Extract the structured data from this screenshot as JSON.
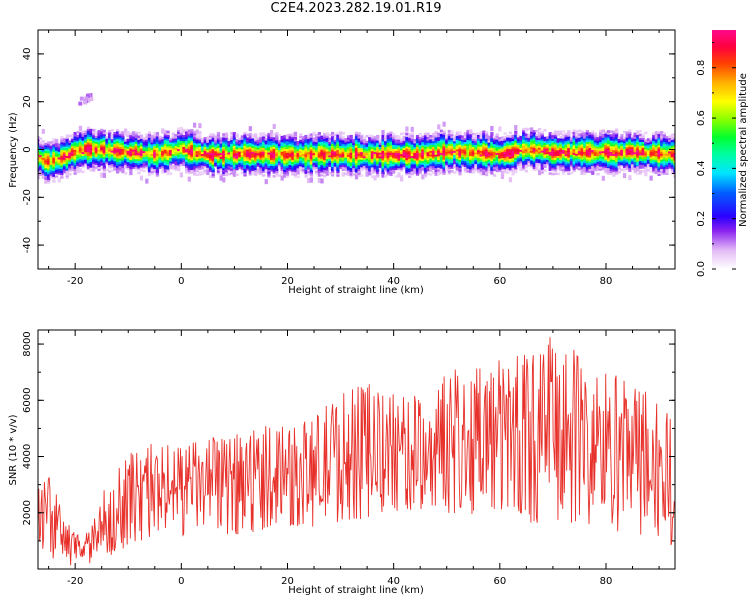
{
  "title": "C2E4.2023.282.19.01.R19",
  "chart_data": [
    {
      "type": "heatmap",
      "xlabel": "Height of straight line (km)",
      "ylabel": "Frequency (Hz)",
      "xlim": [
        -27,
        93
      ],
      "ylim": [
        -50,
        50
      ],
      "x_ticks": [
        -20,
        0,
        20,
        40,
        60,
        80
      ],
      "y_ticks": [
        -40,
        -20,
        0,
        20,
        40
      ],
      "description_series": {
        "name": "",
        "x_step_km": 0.5,
        "ridge_frequency_hz": [
          [
            -27,
            -3
          ],
          [
            -25,
            -5
          ],
          [
            -23,
            -4
          ],
          [
            -21,
            -2
          ],
          [
            -19,
            0
          ],
          [
            -15,
            0
          ],
          [
            -10,
            -1
          ],
          [
            -5,
            -2
          ],
          [
            0,
            0
          ],
          [
            5,
            -2
          ],
          [
            10,
            -2
          ],
          [
            20,
            -2
          ],
          [
            30,
            -2
          ],
          [
            40,
            -2
          ],
          [
            45,
            -2
          ],
          [
            50,
            -1
          ],
          [
            55,
            -1
          ],
          [
            60,
            -2
          ],
          [
            65,
            0
          ],
          [
            70,
            -1
          ],
          [
            80,
            -1
          ],
          [
            85,
            -1
          ],
          [
            93,
            -2
          ]
        ],
        "outlier_blob": {
          "x": -18,
          "y": 21
        }
      },
      "colorbar": {
        "label": "Normalized spectral amplitude",
        "range": [
          0,
          0.95
        ],
        "ticks": [
          0.0,
          0.2,
          0.4,
          0.6,
          0.8
        ],
        "tick_labels": [
          "0.0",
          "0.2",
          "0.4",
          "0.6",
          "0.8"
        ]
      }
    },
    {
      "type": "line",
      "xlabel": "Height of straight line (km)",
      "ylabel": "SNR (10 * v/v)",
      "xlim": [
        -27,
        93
      ],
      "ylim": [
        0,
        8500
      ],
      "x_ticks": [
        -20,
        0,
        20,
        40,
        60,
        80
      ],
      "y_ticks": [
        2000,
        4000,
        6000,
        8000
      ],
      "color": "#e8302a",
      "series": [
        {
          "name": "",
          "envelope": [
            [
              -27,
              500,
              2900
            ],
            [
              -25,
              300,
              3400
            ],
            [
              -23,
              200,
              2500
            ],
            [
              -21,
              100,
              1500
            ],
            [
              -19,
              100,
              1200
            ],
            [
              -17,
              100,
              1500
            ],
            [
              -15,
              300,
              2700
            ],
            [
              -12,
              500,
              3800
            ],
            [
              -10,
              800,
              4200
            ],
            [
              -5,
              1000,
              4500
            ],
            [
              0,
              1100,
              4600
            ],
            [
              5,
              1200,
              4700
            ],
            [
              10,
              1200,
              4800
            ],
            [
              15,
              1300,
              5500
            ],
            [
              20,
              1400,
              5000
            ],
            [
              25,
              1400,
              5600
            ],
            [
              30,
              1500,
              6500
            ],
            [
              35,
              1600,
              6700
            ],
            [
              40,
              1800,
              6300
            ],
            [
              45,
              2000,
              6200
            ],
            [
              50,
              2000,
              7000
            ],
            [
              55,
              1800,
              7500
            ],
            [
              60,
              1700,
              7700
            ],
            [
              65,
              1500,
              7800
            ],
            [
              70,
              1400,
              8400
            ],
            [
              75,
              1300,
              7700
            ],
            [
              80,
              1200,
              7400
            ],
            [
              85,
              1000,
              6800
            ],
            [
              90,
              800,
              6400
            ],
            [
              93,
              800,
              5000
            ]
          ],
          "x_step_km": 0.15
        }
      ]
    }
  ]
}
